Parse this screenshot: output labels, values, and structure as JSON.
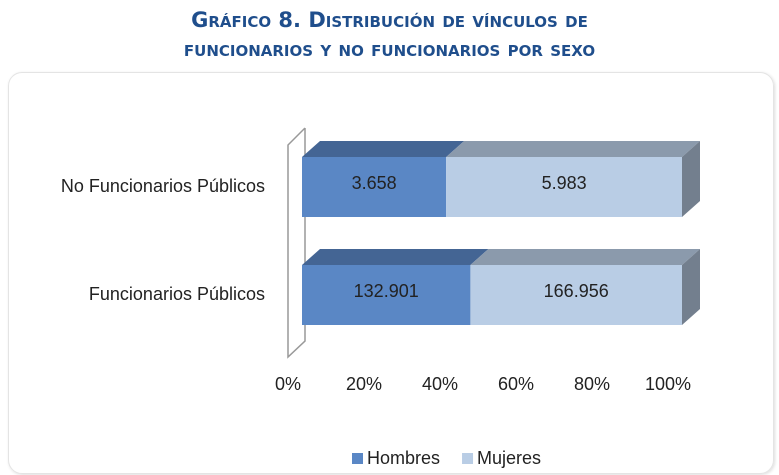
{
  "chart_data": {
    "type": "bar",
    "orientation": "horizontal",
    "stacked": "percent",
    "title": "Gráfico 8. Distribución de vínculos de funcionarios y no funcionarios por sexo",
    "categories": [
      "No Funcionarios Públicos",
      "Funcionarios Públicos"
    ],
    "series": [
      {
        "name": "Hombres",
        "color": "#5a87c5",
        "values": [
          3658,
          132901
        ],
        "value_labels": [
          "3.658",
          "132.901"
        ]
      },
      {
        "name": "Mujeres",
        "color": "#b9cde5",
        "values": [
          5983,
          166956
        ],
        "value_labels": [
          "5.983",
          "166.956"
        ]
      }
    ],
    "xlim": [
      0,
      100
    ],
    "xticks": [
      {
        "value": 0,
        "label": "0%"
      },
      {
        "value": 20,
        "label": "20%"
      },
      {
        "value": 40,
        "label": "40%"
      },
      {
        "value": 60,
        "label": "60%"
      },
      {
        "value": 80,
        "label": "80%"
      },
      {
        "value": 100,
        "label": "100%"
      }
    ],
    "legend": "bottom"
  }
}
